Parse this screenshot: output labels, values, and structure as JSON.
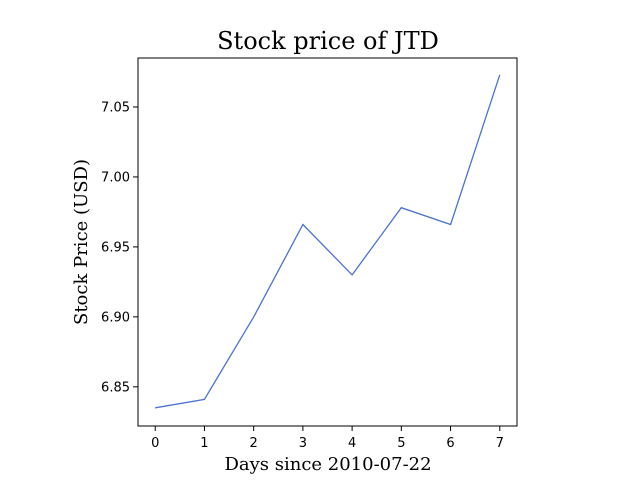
{
  "chart_data": {
    "type": "line",
    "title": "Stock price of JTD",
    "xlabel": "Days since 2010-07-22",
    "ylabel": "Stock Price (USD)",
    "x": [
      0,
      1,
      2,
      3,
      4,
      5,
      6,
      7
    ],
    "series": [
      {
        "values": [
          6.835,
          6.841,
          6.9,
          6.966,
          6.93,
          6.978,
          6.966,
          7.073
        ]
      }
    ],
    "xlim": [
      -0.35,
      7.35
    ],
    "ylim": [
      6.822,
      7.085
    ],
    "xticks": [
      0,
      1,
      2,
      3,
      4,
      5,
      6,
      7
    ],
    "xtick_labels": [
      "0",
      "1",
      "2",
      "3",
      "4",
      "5",
      "6",
      "7"
    ],
    "yticks": [
      6.85,
      6.9,
      6.95,
      7.0,
      7.05
    ],
    "ytick_labels": [
      "6.85",
      "6.90",
      "6.95",
      "7.00",
      "7.05"
    ],
    "grid": false,
    "line_color": "#4c72d0"
  }
}
